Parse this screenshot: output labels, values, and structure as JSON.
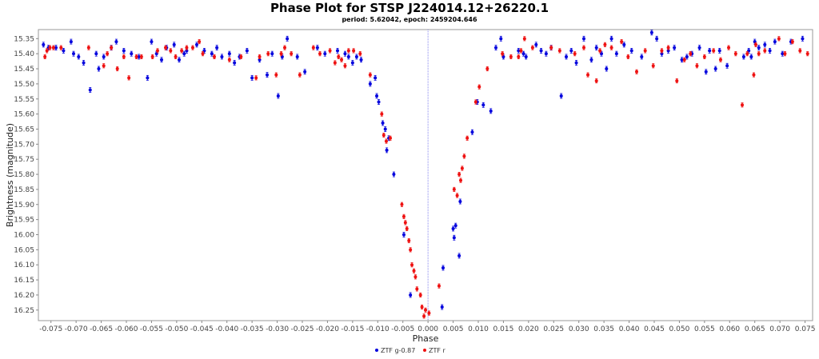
{
  "chart_data": {
    "type": "scatter",
    "title": "Phase Plot for STSP J224014.12+26220.1",
    "subtitle": "period: 5.62042, epoch: 2459204.646",
    "xlabel": "Phase",
    "ylabel": "Brightness (magnitude)",
    "xlim": [
      -0.0775,
      0.0765
    ],
    "ylim": [
      15.32,
      16.285
    ],
    "y_inverted": true,
    "x_ticks": [
      -0.075,
      -0.07,
      -0.065,
      -0.06,
      -0.055,
      -0.05,
      -0.045,
      -0.04,
      -0.035,
      -0.03,
      -0.025,
      -0.02,
      -0.015,
      -0.01,
      -0.005,
      0.0,
      0.005,
      0.01,
      0.015,
      0.02,
      0.025,
      0.03,
      0.035,
      0.04,
      0.045,
      0.05,
      0.055,
      0.06,
      0.065,
      0.07,
      0.075
    ],
    "x_tick_labels": [
      "-0.075",
      "-0.070",
      "-0.065",
      "-0.060",
      "-0.055",
      "-0.050",
      "-0.045",
      "-0.040",
      "-0.035",
      "-0.030",
      "-0.025",
      "-0.020",
      "-0.015",
      "-0.010",
      "-0.005",
      "0.000",
      "0.005",
      "0.010",
      "0.015",
      "0.020",
      "0.025",
      "0.030",
      "0.035",
      "0.040",
      "0.045",
      "0.050",
      "0.055",
      "0.060",
      "0.065",
      "0.070",
      "0.075"
    ],
    "y_ticks": [
      15.35,
      15.4,
      15.45,
      15.5,
      15.55,
      15.6,
      15.65,
      15.7,
      15.75,
      15.8,
      15.85,
      15.9,
      15.95,
      16.0,
      16.05,
      16.1,
      16.15,
      16.2,
      16.25
    ],
    "y_tick_labels": [
      "15.35",
      "15.40",
      "15.45",
      "15.50",
      "15.55",
      "15.60",
      "15.65",
      "15.70",
      "15.75",
      "15.80",
      "15.85",
      "15.90",
      "15.95",
      "16.00",
      "16.05",
      "16.10",
      "16.15",
      "16.20",
      "16.25"
    ],
    "reference_line_x": 0.0,
    "grid": false,
    "legend_position": "bottom-center",
    "colors": {
      "g": "#0000dd",
      "r": "#ee1111",
      "refline": "#8888ee"
    },
    "series": [
      {
        "name": "ZTF g-0.87",
        "color": "#0000dd",
        "error": 0.008,
        "points": [
          [
            -0.0765,
            15.37
          ],
          [
            -0.0755,
            15.38
          ],
          [
            -0.074,
            15.38
          ],
          [
            -0.0725,
            15.39
          ],
          [
            -0.071,
            15.36
          ],
          [
            -0.0705,
            15.4
          ],
          [
            -0.0695,
            15.41
          ],
          [
            -0.0685,
            15.43
          ],
          [
            -0.0672,
            15.52
          ],
          [
            -0.066,
            15.4
          ],
          [
            -0.0655,
            15.45
          ],
          [
            -0.0645,
            15.41
          ],
          [
            -0.063,
            15.38
          ],
          [
            -0.062,
            15.36
          ],
          [
            -0.0605,
            15.39
          ],
          [
            -0.059,
            15.4
          ],
          [
            -0.0575,
            15.41
          ],
          [
            -0.0558,
            15.48
          ],
          [
            -0.055,
            15.36
          ],
          [
            -0.054,
            15.4
          ],
          [
            -0.053,
            15.42
          ],
          [
            -0.052,
            15.38
          ],
          [
            -0.0505,
            15.37
          ],
          [
            -0.0495,
            15.42
          ],
          [
            -0.0485,
            15.4
          ],
          [
            -0.048,
            15.39
          ],
          [
            -0.046,
            15.37
          ],
          [
            -0.0445,
            15.39
          ],
          [
            -0.043,
            15.4
          ],
          [
            -0.042,
            15.38
          ],
          [
            -0.041,
            15.41
          ],
          [
            -0.0395,
            15.4
          ],
          [
            -0.0385,
            15.43
          ],
          [
            -0.0375,
            15.41
          ],
          [
            -0.036,
            15.39
          ],
          [
            -0.035,
            15.48
          ],
          [
            -0.0335,
            15.42
          ],
          [
            -0.032,
            15.47
          ],
          [
            -0.031,
            15.4
          ],
          [
            -0.0298,
            15.54
          ],
          [
            -0.029,
            15.41
          ],
          [
            -0.028,
            15.35
          ],
          [
            -0.026,
            15.41
          ],
          [
            -0.0245,
            15.46
          ],
          [
            -0.022,
            15.38
          ],
          [
            -0.0205,
            15.4
          ],
          [
            -0.018,
            15.39
          ],
          [
            -0.0165,
            15.4
          ],
          [
            -0.0158,
            15.41
          ],
          [
            -0.015,
            15.43
          ],
          [
            -0.0142,
            15.41
          ],
          [
            -0.0133,
            15.42
          ],
          [
            -0.0115,
            15.5
          ],
          [
            -0.0105,
            15.48
          ],
          [
            -0.0102,
            15.54
          ],
          [
            -0.0098,
            15.56
          ],
          [
            -0.009,
            15.63
          ],
          [
            -0.0085,
            15.65
          ],
          [
            -0.0082,
            15.72
          ],
          [
            -0.0078,
            15.68
          ],
          [
            -0.0068,
            15.8
          ],
          [
            -0.0048,
            16.0
          ],
          [
            -0.0035,
            16.2
          ],
          [
            0.0028,
            16.24
          ],
          [
            0.003,
            16.11
          ],
          [
            0.005,
            15.98
          ],
          [
            0.0052,
            16.01
          ],
          [
            0.0055,
            15.97
          ],
          [
            0.0062,
            16.07
          ],
          [
            0.0064,
            15.89
          ],
          [
            0.0088,
            15.66
          ],
          [
            0.0098,
            15.56
          ],
          [
            0.011,
            15.57
          ],
          [
            0.0125,
            15.59
          ],
          [
            0.0135,
            15.38
          ],
          [
            0.0145,
            15.35
          ],
          [
            0.015,
            15.41
          ],
          [
            0.018,
            15.39
          ],
          [
            0.019,
            15.4
          ],
          [
            0.0195,
            15.41
          ],
          [
            0.0215,
            15.37
          ],
          [
            0.0225,
            15.39
          ],
          [
            0.0235,
            15.4
          ],
          [
            0.0245,
            15.38
          ],
          [
            0.0265,
            15.54
          ],
          [
            0.0275,
            15.41
          ],
          [
            0.0285,
            15.39
          ],
          [
            0.0295,
            15.43
          ],
          [
            0.031,
            15.35
          ],
          [
            0.0325,
            15.42
          ],
          [
            0.0335,
            15.38
          ],
          [
            0.0345,
            15.4
          ],
          [
            0.0355,
            15.45
          ],
          [
            0.0365,
            15.35
          ],
          [
            0.0375,
            15.4
          ],
          [
            0.039,
            15.37
          ],
          [
            0.0405,
            15.39
          ],
          [
            0.0425,
            15.41
          ],
          [
            0.0445,
            15.33
          ],
          [
            0.0455,
            15.35
          ],
          [
            0.0465,
            15.4
          ],
          [
            0.0478,
            15.39
          ],
          [
            0.049,
            15.38
          ],
          [
            0.0505,
            15.42
          ],
          [
            0.0515,
            15.41
          ],
          [
            0.0525,
            15.4
          ],
          [
            0.054,
            15.38
          ],
          [
            0.0553,
            15.46
          ],
          [
            0.056,
            15.39
          ],
          [
            0.0572,
            15.45
          ],
          [
            0.058,
            15.39
          ],
          [
            0.0595,
            15.44
          ],
          [
            0.0628,
            15.41
          ],
          [
            0.0638,
            15.39
          ],
          [
            0.0643,
            15.41
          ],
          [
            0.065,
            15.36
          ],
          [
            0.0658,
            15.38
          ],
          [
            0.067,
            15.37
          ],
          [
            0.068,
            15.39
          ],
          [
            0.069,
            15.36
          ],
          [
            0.0705,
            15.4
          ],
          [
            0.0722,
            15.36
          ],
          [
            0.0745,
            15.35
          ]
        ]
      },
      {
        "name": "ZTF r",
        "color": "#ee1111",
        "error": 0.007,
        "points": [
          [
            -0.0762,
            15.41
          ],
          [
            -0.0758,
            15.39
          ],
          [
            -0.0752,
            15.38
          ],
          [
            -0.0745,
            15.38
          ],
          [
            -0.073,
            15.38
          ],
          [
            -0.0675,
            15.38
          ],
          [
            -0.0645,
            15.44
          ],
          [
            -0.0638,
            15.4
          ],
          [
            -0.063,
            15.38
          ],
          [
            -0.0618,
            15.45
          ],
          [
            -0.0605,
            15.41
          ],
          [
            -0.0595,
            15.48
          ],
          [
            -0.058,
            15.41
          ],
          [
            -0.057,
            15.41
          ],
          [
            -0.0548,
            15.41
          ],
          [
            -0.0538,
            15.39
          ],
          [
            -0.0522,
            15.38
          ],
          [
            -0.0512,
            15.39
          ],
          [
            -0.0502,
            15.41
          ],
          [
            -0.049,
            15.39
          ],
          [
            -0.048,
            15.38
          ],
          [
            -0.0468,
            15.38
          ],
          [
            -0.0455,
            15.36
          ],
          [
            -0.0448,
            15.4
          ],
          [
            -0.0425,
            15.41
          ],
          [
            -0.0395,
            15.42
          ],
          [
            -0.0372,
            15.41
          ],
          [
            -0.0342,
            15.48
          ],
          [
            -0.0335,
            15.41
          ],
          [
            -0.0318,
            15.4
          ],
          [
            -0.0302,
            15.47
          ],
          [
            -0.0292,
            15.4
          ],
          [
            -0.0285,
            15.38
          ],
          [
            -0.0272,
            15.4
          ],
          [
            -0.0255,
            15.47
          ],
          [
            -0.0228,
            15.38
          ],
          [
            -0.0215,
            15.4
          ],
          [
            -0.0195,
            15.39
          ],
          [
            -0.0185,
            15.43
          ],
          [
            -0.0178,
            15.41
          ],
          [
            -0.0172,
            15.42
          ],
          [
            -0.0165,
            15.44
          ],
          [
            -0.0158,
            15.39
          ],
          [
            -0.0148,
            15.39
          ],
          [
            -0.0135,
            15.4
          ],
          [
            -0.0115,
            15.47
          ],
          [
            -0.0092,
            15.6
          ],
          [
            -0.0088,
            15.67
          ],
          [
            -0.0083,
            15.69
          ],
          [
            -0.0075,
            15.68
          ],
          [
            -0.0052,
            15.9
          ],
          [
            -0.0048,
            15.94
          ],
          [
            -0.0045,
            15.96
          ],
          [
            -0.0042,
            15.98
          ],
          [
            -0.0038,
            16.02
          ],
          [
            -0.0035,
            16.05
          ],
          [
            -0.0032,
            16.1
          ],
          [
            -0.0028,
            16.12
          ],
          [
            -0.0025,
            16.14
          ],
          [
            -0.0022,
            16.18
          ],
          [
            -0.0015,
            16.2
          ],
          [
            -0.0012,
            16.24
          ],
          [
            -0.0008,
            16.27
          ],
          [
            -0.0005,
            16.25
          ],
          [
            0.0002,
            16.26
          ],
          [
            0.0022,
            16.17
          ],
          [
            0.0052,
            15.85
          ],
          [
            0.0058,
            15.87
          ],
          [
            0.0062,
            15.8
          ],
          [
            0.0065,
            15.82
          ],
          [
            0.0068,
            15.78
          ],
          [
            0.0072,
            15.74
          ],
          [
            0.0078,
            15.68
          ],
          [
            0.0095,
            15.56
          ],
          [
            0.0102,
            15.51
          ],
          [
            0.0118,
            15.45
          ],
          [
            0.0148,
            15.4
          ],
          [
            0.0165,
            15.41
          ],
          [
            0.018,
            15.41
          ],
          [
            0.0185,
            15.39
          ],
          [
            0.0192,
            15.35
          ],
          [
            0.0208,
            15.38
          ],
          [
            0.0245,
            15.38
          ],
          [
            0.0262,
            15.39
          ],
          [
            0.0292,
            15.4
          ],
          [
            0.031,
            15.38
          ],
          [
            0.0318,
            15.47
          ],
          [
            0.0335,
            15.49
          ],
          [
            0.0342,
            15.39
          ],
          [
            0.0352,
            15.37
          ],
          [
            0.0365,
            15.38
          ],
          [
            0.0385,
            15.36
          ],
          [
            0.0398,
            15.41
          ],
          [
            0.0415,
            15.46
          ],
          [
            0.0432,
            15.39
          ],
          [
            0.0448,
            15.44
          ],
          [
            0.0465,
            15.39
          ],
          [
            0.0478,
            15.38
          ],
          [
            0.0495,
            15.49
          ],
          [
            0.051,
            15.42
          ],
          [
            0.0522,
            15.4
          ],
          [
            0.0535,
            15.44
          ],
          [
            0.055,
            15.41
          ],
          [
            0.0568,
            15.39
          ],
          [
            0.0582,
            15.42
          ],
          [
            0.0598,
            15.38
          ],
          [
            0.0612,
            15.4
          ],
          [
            0.0625,
            15.57
          ],
          [
            0.0635,
            15.4
          ],
          [
            0.0648,
            15.47
          ],
          [
            0.0652,
            15.37
          ],
          [
            0.0658,
            15.4
          ],
          [
            0.067,
            15.39
          ],
          [
            0.0698,
            15.35
          ],
          [
            0.071,
            15.4
          ],
          [
            0.0725,
            15.36
          ],
          [
            0.074,
            15.39
          ],
          [
            0.0755,
            15.4
          ]
        ]
      }
    ]
  }
}
